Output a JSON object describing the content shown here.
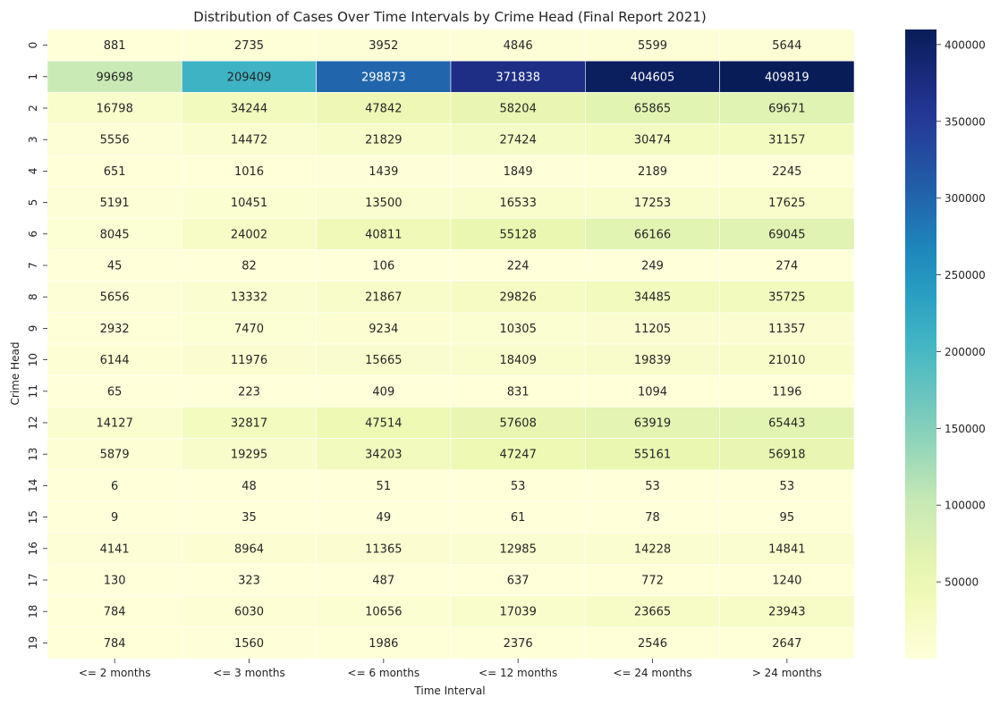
{
  "chart_data": {
    "type": "heatmap",
    "title": "Distribution of Cases Over Time Intervals by Crime Head (Final Report 2021)",
    "xlabel": "Time Interval",
    "ylabel": "Crime Head",
    "x_categories": [
      "<= 2 months",
      "<= 3 months",
      "<= 6 months",
      "<= 12 months",
      "<= 24 months",
      "> 24 months"
    ],
    "y_categories": [
      "0",
      "1",
      "2",
      "3",
      "4",
      "5",
      "6",
      "7",
      "8",
      "9",
      "10",
      "11",
      "12",
      "13",
      "14",
      "15",
      "16",
      "17",
      "18",
      "19"
    ],
    "values": [
      [
        881,
        2735,
        3952,
        4846,
        5599,
        5644
      ],
      [
        99698,
        209409,
        298873,
        371838,
        404605,
        409819
      ],
      [
        16798,
        34244,
        47842,
        58204,
        65865,
        69671
      ],
      [
        5556,
        14472,
        21829,
        27424,
        30474,
        31157
      ],
      [
        651,
        1016,
        1439,
        1849,
        2189,
        2245
      ],
      [
        5191,
        10451,
        13500,
        16533,
        17253,
        17625
      ],
      [
        8045,
        24002,
        40811,
        55128,
        66166,
        69045
      ],
      [
        45,
        82,
        106,
        224,
        249,
        274
      ],
      [
        5656,
        13332,
        21867,
        29826,
        34485,
        35725
      ],
      [
        2932,
        7470,
        9234,
        10305,
        11205,
        11357
      ],
      [
        6144,
        11976,
        15665,
        18409,
        19839,
        21010
      ],
      [
        65,
        223,
        409,
        831,
        1094,
        1196
      ],
      [
        14127,
        32817,
        47514,
        57608,
        63919,
        65443
      ],
      [
        5879,
        19295,
        34203,
        47247,
        55161,
        56918
      ],
      [
        6,
        48,
        51,
        53,
        53,
        53
      ],
      [
        9,
        35,
        49,
        61,
        78,
        95
      ],
      [
        4141,
        8964,
        11365,
        12985,
        14228,
        14841
      ],
      [
        130,
        323,
        487,
        637,
        772,
        1240
      ],
      [
        784,
        6030,
        10656,
        17039,
        23665,
        23943
      ],
      [
        784,
        1560,
        1986,
        2376,
        2546,
        2647
      ]
    ],
    "colormap": "YlGnBu",
    "colorbar": {
      "min": 6,
      "max": 409819,
      "ticks": [
        50000,
        100000,
        150000,
        200000,
        250000,
        300000,
        350000,
        400000
      ]
    },
    "annotations": true
  }
}
